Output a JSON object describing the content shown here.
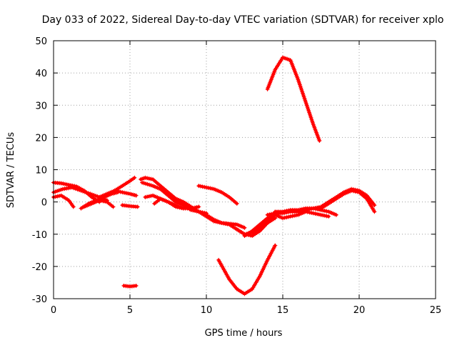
{
  "chart_data": {
    "type": "scatter",
    "title": "Day 033 of 2022, Sidereal Day-to-day VTEC variation (SDTVAR) for receiver xplo",
    "xlabel": "GPS time / hours",
    "ylabel": "SDTVAR / TECUs",
    "xlim": [
      0,
      25
    ],
    "ylim": [
      -30,
      50
    ],
    "xticks": [
      0,
      5,
      10,
      15,
      20,
      25
    ],
    "yticks": [
      -30,
      -20,
      -10,
      0,
      10,
      20,
      30,
      40,
      50
    ],
    "grid": true,
    "marker": "plus",
    "color": "#ff0000",
    "series": [
      {
        "name": "s1",
        "x": [
          0,
          0.5,
          1,
          1.5,
          2,
          2.5,
          3
        ],
        "y": [
          6,
          5.8,
          5.3,
          4.8,
          3.5,
          1.5,
          0
        ]
      },
      {
        "name": "s2",
        "x": [
          0,
          0.6,
          1.2,
          1.8,
          2.4,
          3,
          3.5
        ],
        "y": [
          3,
          4,
          4.5,
          3.5,
          2.5,
          1.5,
          0.5
        ]
      },
      {
        "name": "s3",
        "x": [
          0,
          0.5,
          1,
          1.3
        ],
        "y": [
          1.5,
          2,
          0.5,
          -1.5
        ]
      },
      {
        "name": "s4",
        "x": [
          1.8,
          2.3,
          2.8,
          3.3,
          3.8,
          4.2
        ],
        "y": [
          -2,
          -0.5,
          0.5,
          1.5,
          2.5,
          3
        ]
      },
      {
        "name": "s5",
        "x": [
          2,
          2.5,
          3,
          3.5,
          3.9
        ],
        "y": [
          -1.5,
          -0.5,
          0.5,
          0,
          -1.5
        ]
      },
      {
        "name": "s6",
        "x": [
          3,
          3.5,
          4,
          4.5,
          5,
          5.3
        ],
        "y": [
          1.5,
          2.5,
          3.5,
          5,
          6.5,
          7.5
        ]
      },
      {
        "name": "s7",
        "x": [
          4,
          4.5,
          5,
          5.4
        ],
        "y": [
          3.5,
          3,
          2.5,
          2
        ]
      },
      {
        "name": "s8",
        "x": [
          4.5,
          5,
          5.5
        ],
        "y": [
          -1,
          -1.3,
          -1.5
        ]
      },
      {
        "name": "s9",
        "x": [
          5.7,
          6,
          6.5,
          7,
          7.5,
          8,
          8.5,
          9,
          9.5,
          10
        ],
        "y": [
          7,
          7.5,
          7,
          5,
          3,
          1,
          -1,
          -2.5,
          -3,
          -3.5
        ]
      },
      {
        "name": "s10",
        "x": [
          5.8,
          6.5,
          7,
          7.5,
          8,
          8.5,
          9,
          9.5,
          10,
          10.5,
          11,
          12,
          12.5
        ],
        "y": [
          6,
          5,
          4,
          2,
          0,
          -1,
          -2,
          -3,
          -4,
          -5.5,
          -6.5,
          -7,
          -8
        ]
      },
      {
        "name": "s11",
        "x": [
          6,
          6.5,
          7,
          7.5,
          8,
          8.5
        ],
        "y": [
          1.5,
          2,
          1,
          0,
          -1,
          -2
        ]
      },
      {
        "name": "s12",
        "x": [
          6.6,
          7,
          7.5,
          8,
          8.5,
          9,
          9.5
        ],
        "y": [
          -0.5,
          1,
          0,
          -1.5,
          -2,
          -2,
          -1.5
        ]
      },
      {
        "name": "s13",
        "x": [
          8,
          8.5,
          9,
          9.5,
          10,
          10.5,
          11,
          11.5,
          12,
          12.5,
          13,
          13.5,
          14,
          14.5
        ],
        "y": [
          1,
          0,
          -1.5,
          -3,
          -4.5,
          -6,
          -6.5,
          -7,
          -8.5,
          -10,
          -9.5,
          -8,
          -6,
          -4
        ]
      },
      {
        "name": "s14",
        "x": [
          9.5,
          10,
          10.5,
          11,
          11.5,
          12
        ],
        "y": [
          5,
          4.5,
          4,
          3,
          1.5,
          -0.5
        ]
      },
      {
        "name": "s15",
        "x": [
          12.5,
          13,
          13.5,
          14,
          14.5,
          15,
          15.5,
          16,
          16.5,
          17,
          17.5,
          18
        ],
        "y": [
          -10.5,
          -9,
          -7,
          -5,
          -4,
          -5,
          -4.5,
          -4,
          -3,
          -3.5,
          -4,
          -4.5
        ]
      },
      {
        "name": "s16",
        "x": [
          14,
          14.5,
          15,
          15.5,
          16,
          16.5,
          17,
          17.5,
          18,
          18.5
        ],
        "y": [
          -4,
          -3.5,
          -3.5,
          -3,
          -3,
          -2.5,
          -2,
          -2.5,
          -3,
          -4
        ]
      },
      {
        "name": "s17",
        "x": [
          14.5,
          15,
          15.5,
          16,
          16.5,
          17,
          17.5,
          18,
          18.5,
          19,
          19.5,
          20,
          20.5,
          21
        ],
        "y": [
          -3,
          -3,
          -2.5,
          -2.5,
          -2,
          -2,
          -1.5,
          0,
          1.5,
          3,
          4,
          3.5,
          2,
          -1
        ]
      },
      {
        "name": "s18",
        "x": [
          17.5,
          18,
          18.5,
          19,
          19.5,
          20,
          20.5,
          21
        ],
        "y": [
          -2,
          -0.5,
          1,
          2.5,
          3.5,
          3,
          1,
          -3
        ]
      },
      {
        "name": "s19",
        "x": [
          12,
          12.5,
          13,
          13.5,
          14,
          14.5
        ],
        "y": [
          -8.5,
          -10,
          -10.5,
          -9,
          -6.5,
          -5
        ]
      },
      {
        "name": "s20",
        "x": [
          14,
          14.5,
          15,
          15.5,
          16,
          16.5,
          17,
          17.4
        ],
        "y": [
          35,
          41,
          44.8,
          44,
          38,
          31,
          24,
          19
        ]
      },
      {
        "name": "s21",
        "x": [
          10.8,
          11.5,
          12,
          12.5,
          13,
          13.5,
          14,
          14.5
        ],
        "y": [
          -18,
          -24,
          -27,
          -28.5,
          -27,
          -23,
          -18,
          -13.5
        ]
      },
      {
        "name": "s22",
        "x": [
          4.6,
          5,
          5.4
        ],
        "y": [
          -26,
          -26.2,
          -26
        ]
      }
    ]
  }
}
